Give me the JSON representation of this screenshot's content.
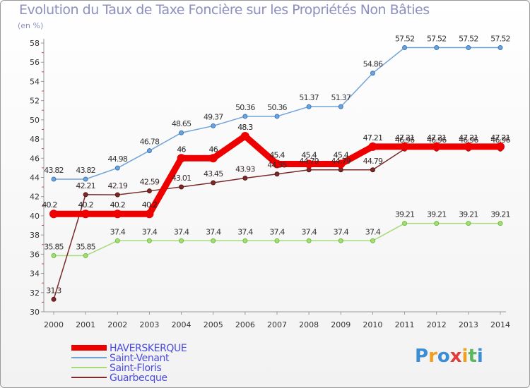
{
  "chart_data": {
    "type": "line",
    "title": "Evolution du Taux de Taxe Foncière sur les Propriétés Non Bâties",
    "ylabel": "(en %)",
    "xlabel": "",
    "ylim": [
      30,
      58
    ],
    "yticks": [
      30,
      32,
      34,
      36,
      38,
      40,
      42,
      44,
      46,
      48,
      50,
      52,
      54,
      56,
      58
    ],
    "categories": [
      "2000",
      "2001",
      "2002",
      "2003",
      "2004",
      "2005",
      "2006",
      "2007",
      "2008",
      "2009",
      "2010",
      "2011",
      "2012",
      "2013",
      "2014"
    ],
    "grid": false,
    "legend_position": "bottom-left",
    "series": [
      {
        "name": "HAVERSKERQUE",
        "color": "#ee0000",
        "values": [
          40.2,
          40.2,
          40.2,
          40.2,
          46,
          46,
          48.3,
          45.4,
          45.4,
          45.4,
          47.21,
          47.21,
          47.21,
          47.21,
          47.21
        ],
        "labels": [
          "40.2",
          "40.2",
          "40.2",
          "40.2",
          "46",
          "46",
          "48.3",
          "45.4",
          "45.4",
          "45.4",
          "47.21",
          "47.21",
          "47.21",
          "47.21",
          "47.21"
        ]
      },
      {
        "name": "Saint-Venant",
        "color": "#6fa3d8",
        "values": [
          43.82,
          43.82,
          44.98,
          46.78,
          48.65,
          49.37,
          50.36,
          50.36,
          51.37,
          51.37,
          54.86,
          57.52,
          57.52,
          57.52,
          57.52
        ],
        "labels": [
          "43.82",
          "43.82",
          "44.98",
          "46.78",
          "48.65",
          "49.37",
          "50.36",
          "50.36",
          "51.37",
          "51.37",
          "54.86",
          "57.52",
          "57.52",
          "57.52",
          "57.52"
        ]
      },
      {
        "name": "Saint-Floris",
        "color": "#a6db7a",
        "values": [
          35.85,
          35.85,
          37.4,
          37.4,
          37.4,
          37.4,
          37.4,
          37.4,
          37.4,
          37.4,
          37.4,
          39.21,
          39.21,
          39.21,
          39.21
        ],
        "labels": [
          "35.85",
          "35.85",
          "37.4",
          "37.4",
          "37.4",
          "37.4",
          "37.4",
          "37.4",
          "37.4",
          "37.4",
          "37.4",
          "39.21",
          "39.21",
          "39.21",
          "39.21"
        ]
      },
      {
        "name": "Guarbecque",
        "color": "#7a2a2a",
        "values": [
          31.3,
          42.21,
          42.19,
          42.59,
          43.01,
          43.45,
          43.93,
          44.35,
          44.79,
          44.79,
          44.79,
          46.96,
          46.96,
          46.96,
          46.96
        ],
        "labels": [
          "31.3",
          "42.21",
          "42.19",
          "42.59",
          "43.01",
          "43.45",
          "43.93",
          "44.35",
          "44.79",
          "44.79",
          "44.79",
          "46.96",
          "46.96",
          "46.96",
          "46.96"
        ]
      }
    ]
  },
  "brand": {
    "letters": [
      "P",
      "r",
      "o",
      "x",
      "i",
      "t",
      "i"
    ],
    "colors": [
      "#3b8ed6",
      "#f0a020",
      "#3b8ed6",
      "#e03c3c",
      "#f0a020",
      "#5cb85c",
      "#3b8ed6"
    ]
  }
}
